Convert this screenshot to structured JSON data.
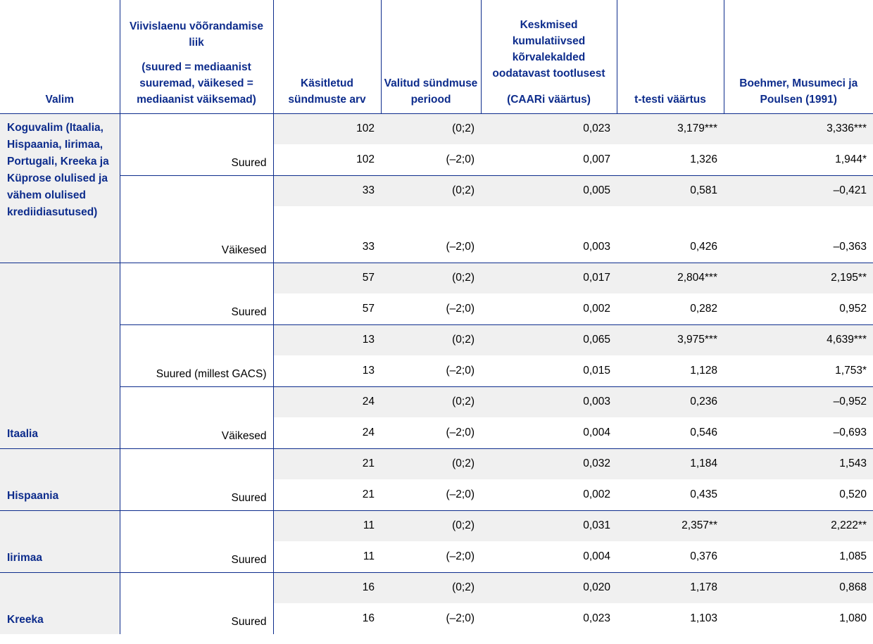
{
  "headers": {
    "sample": "Valim",
    "type_title": "Viivislaenu võõrandamise liik",
    "type_note": "(suured = mediaanist suuremad, väikesed = mediaanist väiksemad)",
    "events": "Käsitletud sündmuste arv",
    "window": "Valitud sündmuse periood",
    "caar_title": "Keskmised kumulatiivsed kõrvalekalded oodatavast tootlusest",
    "caar_note": "(CAARi väärtus)",
    "ttest": "t-testi väärtus",
    "bmp": "Boehmer, Musumeci ja Poulsen (1991)"
  },
  "groups": [
    {
      "sample": "Koguvalim (Itaalia, Hispaania, Iirimaa, Portugali, Kreeka ja Küprose olulised ja vähem olulised krediidiasutused)",
      "subgroups": [
        {
          "type": "Suured",
          "rows": [
            {
              "events": "102",
              "window": "(0;2)",
              "caar": "0,023",
              "ttest": "3,179***",
              "bmp": "3,336***"
            },
            {
              "events": "102",
              "window": "(–2;0)",
              "caar": "0,007",
              "ttest": "1,326",
              "bmp": "1,944*"
            }
          ]
        },
        {
          "type": "Väikesed",
          "rows": [
            {
              "events": "33",
              "window": "(0;2)",
              "caar": "0,005",
              "ttest": "0,581",
              "bmp": "–0,421"
            },
            {
              "events": "33",
              "window": "(–2;0)",
              "caar": "0,003",
              "ttest": "0,426",
              "bmp": "–0,363"
            }
          ]
        }
      ]
    },
    {
      "sample": "Itaalia",
      "subgroups": [
        {
          "type": "Suured",
          "rows": [
            {
              "events": "57",
              "window": "(0;2)",
              "caar": "0,017",
              "ttest": "2,804***",
              "bmp": "2,195**"
            },
            {
              "events": "57",
              "window": "(–2;0)",
              "caar": "0,002",
              "ttest": "0,282",
              "bmp": "0,952"
            }
          ]
        },
        {
          "type": "Suured (millest GACS)",
          "rows": [
            {
              "events": "13",
              "window": "(0;2)",
              "caar": "0,065",
              "ttest": "3,975***",
              "bmp": "4,639***"
            },
            {
              "events": "13",
              "window": "(–2;0)",
              "caar": "0,015",
              "ttest": "1,128",
              "bmp": "1,753*"
            }
          ]
        },
        {
          "type": "Väikesed",
          "rows": [
            {
              "events": "24",
              "window": "(0;2)",
              "caar": "0,003",
              "ttest": "0,236",
              "bmp": "–0,952"
            },
            {
              "events": "24",
              "window": "(–2;0)",
              "caar": "0,004",
              "ttest": "0,546",
              "bmp": "–0,693"
            }
          ]
        }
      ]
    },
    {
      "sample": "Hispaania",
      "subgroups": [
        {
          "type": "Suured",
          "rows": [
            {
              "events": "21",
              "window": "(0;2)",
              "caar": "0,032",
              "ttest": "1,184",
              "bmp": "1,543"
            },
            {
              "events": "21",
              "window": "(–2;0)",
              "caar": "0,002",
              "ttest": "0,435",
              "bmp": "0,520"
            }
          ]
        }
      ]
    },
    {
      "sample": "Iirimaa",
      "subgroups": [
        {
          "type": "Suured",
          "rows": [
            {
              "events": "11",
              "window": "(0;2)",
              "caar": "0,031",
              "ttest": "2,357**",
              "bmp": "2,222**"
            },
            {
              "events": "11",
              "window": "(–2;0)",
              "caar": "0,004",
              "ttest": "0,376",
              "bmp": "1,085"
            }
          ]
        }
      ]
    },
    {
      "sample": "Kreeka",
      "subgroups": [
        {
          "type": "Suured",
          "rows": [
            {
              "events": "16",
              "window": "(0;2)",
              "caar": "0,020",
              "ttest": "1,178",
              "bmp": "0,868"
            },
            {
              "events": "16",
              "window": "(–2;0)",
              "caar": "0,023",
              "ttest": "1,103",
              "bmp": "1,080"
            }
          ]
        }
      ]
    }
  ]
}
